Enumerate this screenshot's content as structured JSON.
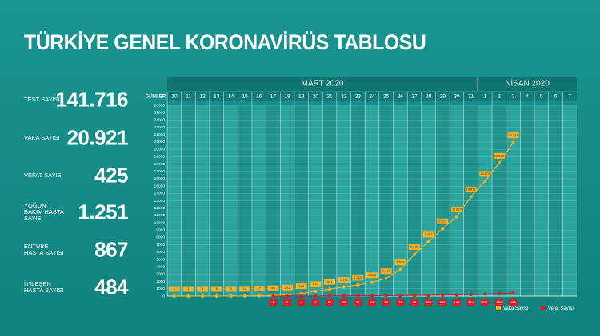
{
  "title": "TÜRKİYE GENEL KORONAVİRÜS TABLOSU",
  "stats": [
    {
      "label": "TEST SAYISI",
      "value": "141.716"
    },
    {
      "label": "VAKA SAYISI",
      "value": "20.921"
    },
    {
      "label": "VEFAT SAYISI",
      "value": "425"
    },
    {
      "label": "YOĞUN BAKIM HASTA SAYISI",
      "value": "1.251"
    },
    {
      "label": "ENTÜBE HASTA SAYISI",
      "value": "867"
    },
    {
      "label": "İYİLEŞEN HASTA SAYISI",
      "value": "484"
    }
  ],
  "chart_data": {
    "type": "line",
    "x_label": "GÜNLER",
    "groups": [
      "MART 2020",
      "NİSAN 2020"
    ],
    "categories": [
      "10",
      "11",
      "12",
      "13",
      "14",
      "15",
      "16",
      "17",
      "18",
      "19",
      "20",
      "21",
      "22",
      "23",
      "24",
      "25",
      "26",
      "27",
      "28",
      "29",
      "30",
      "31",
      "1",
      "2",
      "3",
      "4",
      "5",
      "6",
      "7"
    ],
    "series": [
      {
        "name": "Vaka Sayısı",
        "color": "#f2b126",
        "values": [
          0,
          1,
          1,
          5,
          6,
          18,
          47,
          98,
          191,
          359,
          670,
          947,
          1236,
          1529,
          1872,
          2433,
          3629,
          5698,
          7402,
          9217,
          10827,
          13531,
          15679,
          18135,
          20921,
          null,
          null,
          null,
          null
        ],
        "value_labels": [
          "0",
          "1",
          "1",
          "5",
          "6",
          "18",
          "47",
          "98",
          "191",
          "359",
          "670",
          "947",
          "1.236",
          "1.529",
          "1.872",
          "2.433",
          "3.629",
          "5.698",
          "7.402",
          "9.217",
          "10.827",
          "13.531",
          "15.679",
          "18.135",
          "20.921",
          null,
          null,
          null,
          null
        ]
      },
      {
        "name": "Vefat Sayısı",
        "color": "#d4202b",
        "values": [
          null,
          null,
          null,
          null,
          null,
          null,
          null,
          1,
          2,
          4,
          9,
          21,
          30,
          37,
          44,
          59,
          75,
          92,
          108,
          131,
          168,
          214,
          277,
          356,
          425,
          null,
          null,
          null,
          null
        ]
      }
    ],
    "ylim": [
      0,
      26000
    ],
    "yticks": [
      0,
      1000,
      2000,
      3000,
      4000,
      5000,
      6000,
      7000,
      8000,
      9000,
      10000,
      11000,
      12000,
      13000,
      14000,
      15000,
      16000,
      17000,
      18000,
      19000,
      20000,
      21000,
      22000,
      23000,
      24000,
      25000,
      26000
    ],
    "grid": true
  }
}
